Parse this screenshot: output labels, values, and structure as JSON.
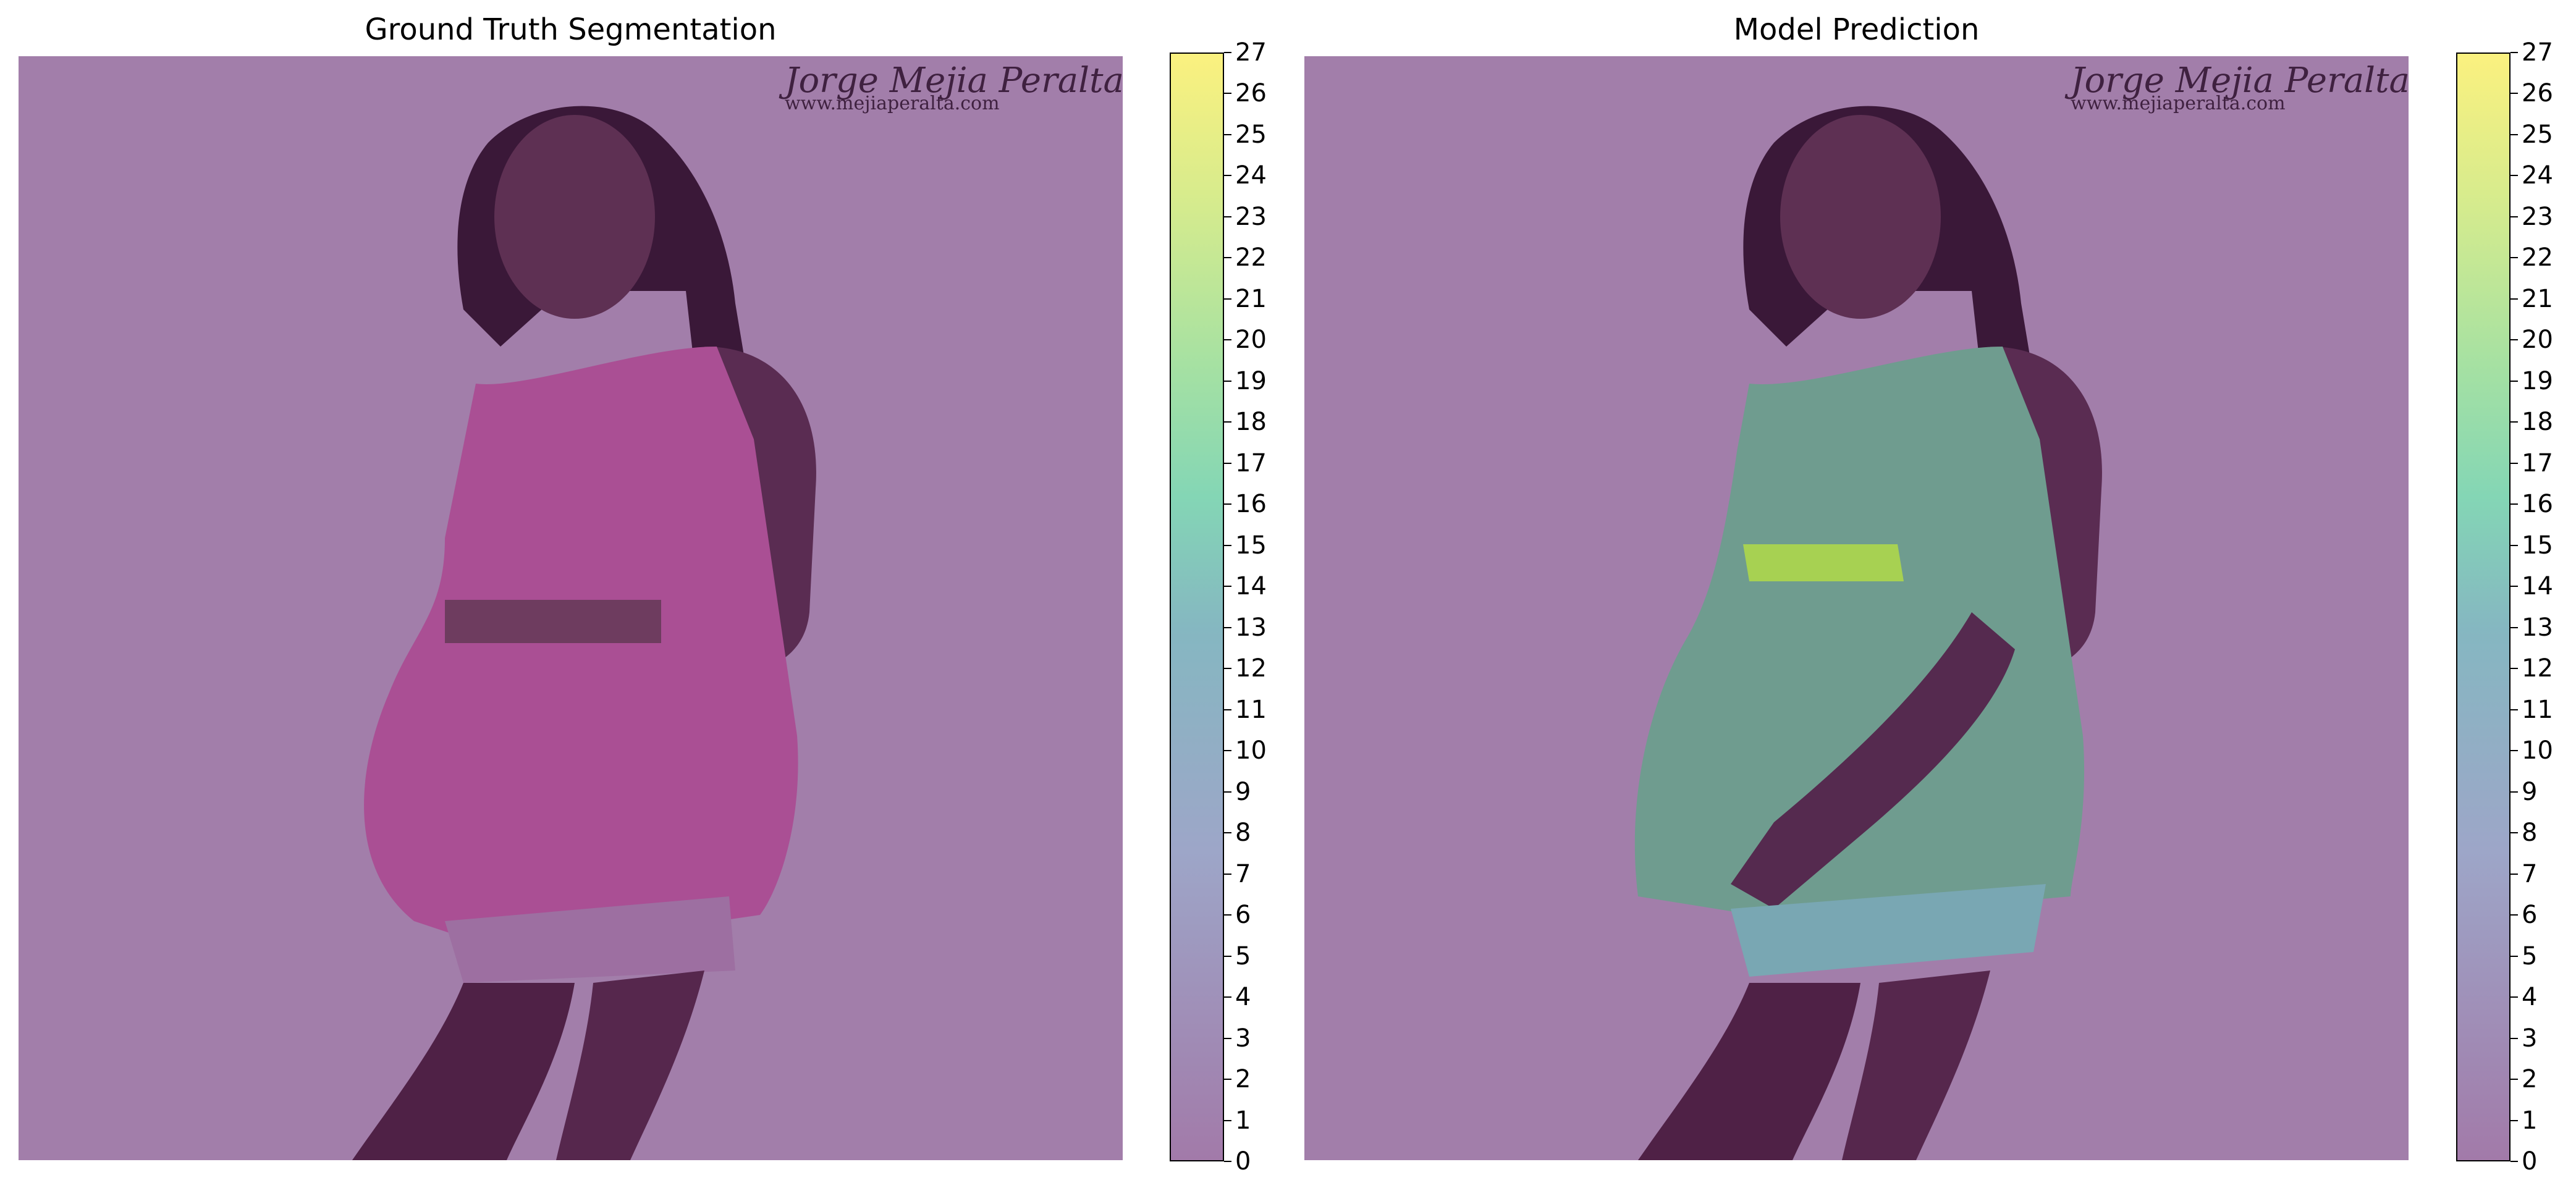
{
  "panels": [
    {
      "title": "Ground Truth Segmentation",
      "watermark_line1": "Jorge Mejia Peralta",
      "watermark_line2": "www.mejiaperalta.com"
    },
    {
      "title": "Model Prediction",
      "watermark_line1": "Jorge Mejia Peralta",
      "watermark_line2": "www.mejiaperalta.com"
    }
  ],
  "colorbar": {
    "min": 0,
    "max": 27,
    "ticks": [
      "0",
      "1",
      "2",
      "3",
      "4",
      "5",
      "6",
      "7",
      "8",
      "9",
      "10",
      "11",
      "12",
      "13",
      "14",
      "15",
      "16",
      "17",
      "18",
      "19",
      "20",
      "21",
      "22",
      "23",
      "24",
      "25",
      "26",
      "27"
    ]
  }
}
